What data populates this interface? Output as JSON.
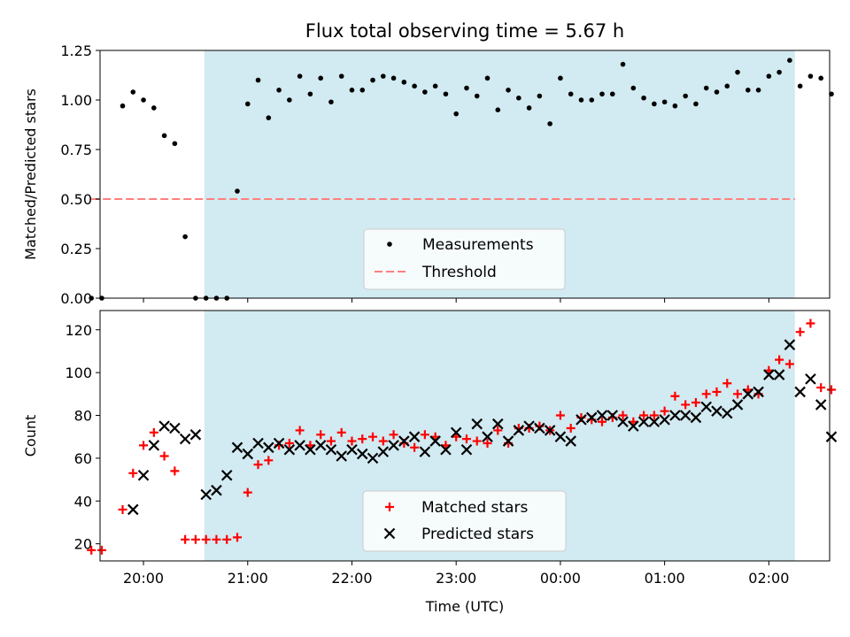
{
  "title": "Flux total observing time = 5.67 h",
  "colors": {
    "band": "#add8e6",
    "measurement": "#000000",
    "threshold": "#ff7f7f",
    "matched": "#ff0000",
    "predicted": "#000000"
  },
  "chart_data": [
    {
      "type": "scatter",
      "ylabel": "Matched/Predicted stars",
      "ylim": [
        0,
        1.25
      ],
      "xlim": [
        "19:35",
        "02:35"
      ],
      "yticks": [
        "0.00",
        "0.25",
        "0.50",
        "0.75",
        "1.00",
        "1.25"
      ],
      "observing_window": [
        "20:35",
        "02:15"
      ],
      "legend": {
        "placement": "bottom-center",
        "entries": [
          "Measurements",
          "Threshold"
        ]
      },
      "threshold": {
        "name": "Threshold",
        "value": 0.5,
        "x": [
          "19:30",
          "02:15"
        ]
      },
      "series": [
        {
          "name": "Measurements",
          "x": [
            "19:30",
            "19:36",
            "19:48",
            "19:54",
            "20:00",
            "20:06",
            "20:12",
            "20:18",
            "20:24",
            "20:30",
            "20:36",
            "20:42",
            "20:48",
            "20:54",
            "21:00",
            "21:06",
            "21:12",
            "21:18",
            "21:24",
            "21:30",
            "21:36",
            "21:42",
            "21:48",
            "21:54",
            "22:00",
            "22:06",
            "22:12",
            "22:18",
            "22:24",
            "22:30",
            "22:36",
            "22:42",
            "22:48",
            "22:54",
            "23:00",
            "23:06",
            "23:12",
            "23:18",
            "23:24",
            "23:30",
            "23:36",
            "23:42",
            "23:48",
            "23:54",
            "00:00",
            "00:06",
            "00:12",
            "00:18",
            "00:24",
            "00:30",
            "00:36",
            "00:42",
            "00:48",
            "00:54",
            "01:00",
            "01:06",
            "01:12",
            "01:18",
            "01:24",
            "01:30",
            "01:36",
            "01:42",
            "01:48",
            "01:54",
            "02:00",
            "02:06",
            "02:12",
            "02:18",
            "02:24",
            "02:30",
            "02:36"
          ],
          "y": [
            0.0,
            0.0,
            0.97,
            1.04,
            1.0,
            0.96,
            0.82,
            0.78,
            0.31,
            0.0,
            0.0,
            0.0,
            0.0,
            0.54,
            0.98,
            1.1,
            0.91,
            1.05,
            1.0,
            1.12,
            1.03,
            1.11,
            0.99,
            1.12,
            1.05,
            1.05,
            1.1,
            1.12,
            1.11,
            1.09,
            1.07,
            1.04,
            1.07,
            1.03,
            0.93,
            1.06,
            1.02,
            1.11,
            0.95,
            1.05,
            1.01,
            0.96,
            1.02,
            0.88,
            1.11,
            1.03,
            1.0,
            1.0,
            1.03,
            1.03,
            1.18,
            1.06,
            1.01,
            0.98,
            0.99,
            0.97,
            1.02,
            0.98,
            1.06,
            1.04,
            1.07,
            1.14,
            1.05,
            1.05,
            1.12,
            1.14,
            1.2,
            1.07,
            1.12,
            1.11,
            1.03
          ]
        }
      ]
    },
    {
      "type": "scatter",
      "xlabel": "Time (UTC)",
      "ylabel": "Count",
      "ylim": [
        12,
        129
      ],
      "xlim": [
        "19:35",
        "02:35"
      ],
      "xticks": [
        "20:00",
        "21:00",
        "22:00",
        "23:00",
        "00:00",
        "01:00",
        "02:00"
      ],
      "yticks": [
        "20",
        "40",
        "60",
        "80",
        "100",
        "120"
      ],
      "observing_window": [
        "20:35",
        "02:15"
      ],
      "legend": {
        "placement": "bottom-center",
        "entries": [
          "Matched stars",
          "Predicted stars"
        ]
      },
      "series": [
        {
          "name": "Matched stars",
          "x": [
            "19:30",
            "19:36",
            "19:48",
            "19:54",
            "20:00",
            "20:06",
            "20:12",
            "20:18",
            "20:24",
            "20:30",
            "20:36",
            "20:42",
            "20:48",
            "20:54",
            "21:00",
            "21:06",
            "21:12",
            "21:18",
            "21:24",
            "21:30",
            "21:36",
            "21:42",
            "21:48",
            "21:54",
            "22:00",
            "22:06",
            "22:12",
            "22:18",
            "22:24",
            "22:30",
            "22:36",
            "22:42",
            "22:48",
            "22:54",
            "23:00",
            "23:06",
            "23:12",
            "23:18",
            "23:24",
            "23:30",
            "23:36",
            "23:42",
            "23:48",
            "23:54",
            "00:00",
            "00:06",
            "00:12",
            "00:18",
            "00:24",
            "00:30",
            "00:36",
            "00:42",
            "00:48",
            "00:54",
            "01:00",
            "01:06",
            "01:12",
            "01:18",
            "01:24",
            "01:30",
            "01:36",
            "01:42",
            "01:48",
            "01:54",
            "02:00",
            "02:06",
            "02:12",
            "02:18",
            "02:24",
            "02:30",
            "02:36"
          ],
          "y": [
            17,
            17,
            36,
            53,
            66,
            72,
            61,
            54,
            22,
            22,
            22,
            22,
            22,
            23,
            44,
            57,
            59,
            66,
            67,
            73,
            66,
            71,
            68,
            72,
            68,
            69,
            70,
            68,
            71,
            67,
            65,
            71,
            70,
            66,
            70,
            69,
            68,
            67,
            73,
            67,
            74,
            74,
            75,
            73,
            80,
            74,
            79,
            78,
            77,
            79,
            80,
            77,
            80,
            80,
            82,
            89,
            85,
            86,
            90,
            91,
            95,
            90,
            92,
            90,
            101,
            106,
            104,
            119,
            123,
            93,
            92
          ]
        },
        {
          "name": "Predicted stars",
          "x": [
            "19:54",
            "20:00",
            "20:06",
            "20:12",
            "20:18",
            "20:24",
            "20:30",
            "20:36",
            "20:42",
            "20:48",
            "20:54",
            "21:00",
            "21:06",
            "21:12",
            "21:18",
            "21:24",
            "21:30",
            "21:36",
            "21:42",
            "21:48",
            "21:54",
            "22:00",
            "22:06",
            "22:12",
            "22:18",
            "22:24",
            "22:30",
            "22:36",
            "22:42",
            "22:48",
            "22:54",
            "23:00",
            "23:06",
            "23:12",
            "23:18",
            "23:24",
            "23:30",
            "23:36",
            "23:42",
            "23:48",
            "23:54",
            "00:00",
            "00:06",
            "00:12",
            "00:18",
            "00:24",
            "00:30",
            "00:36",
            "00:42",
            "00:48",
            "00:54",
            "01:00",
            "01:06",
            "01:12",
            "01:18",
            "01:24",
            "01:30",
            "01:36",
            "01:42",
            "01:48",
            "01:54",
            "02:00",
            "02:06",
            "02:12",
            "02:18",
            "02:24",
            "02:30",
            "02:36"
          ],
          "y": [
            36,
            52,
            66,
            75,
            74,
            69,
            71,
            43,
            45,
            52,
            65,
            62,
            67,
            65,
            67,
            64,
            66,
            64,
            66,
            64,
            61,
            64,
            62,
            60,
            63,
            66,
            68,
            70,
            63,
            68,
            64,
            72,
            64,
            76,
            70,
            76,
            68,
            73,
            75,
            74,
            73,
            70,
            68,
            78,
            79,
            80,
            80,
            77,
            75,
            77,
            77,
            78,
            80,
            80,
            79,
            84,
            82,
            81,
            85,
            90,
            91,
            99,
            99,
            113,
            91,
            97,
            85,
            70
          ]
        }
      ]
    }
  ]
}
